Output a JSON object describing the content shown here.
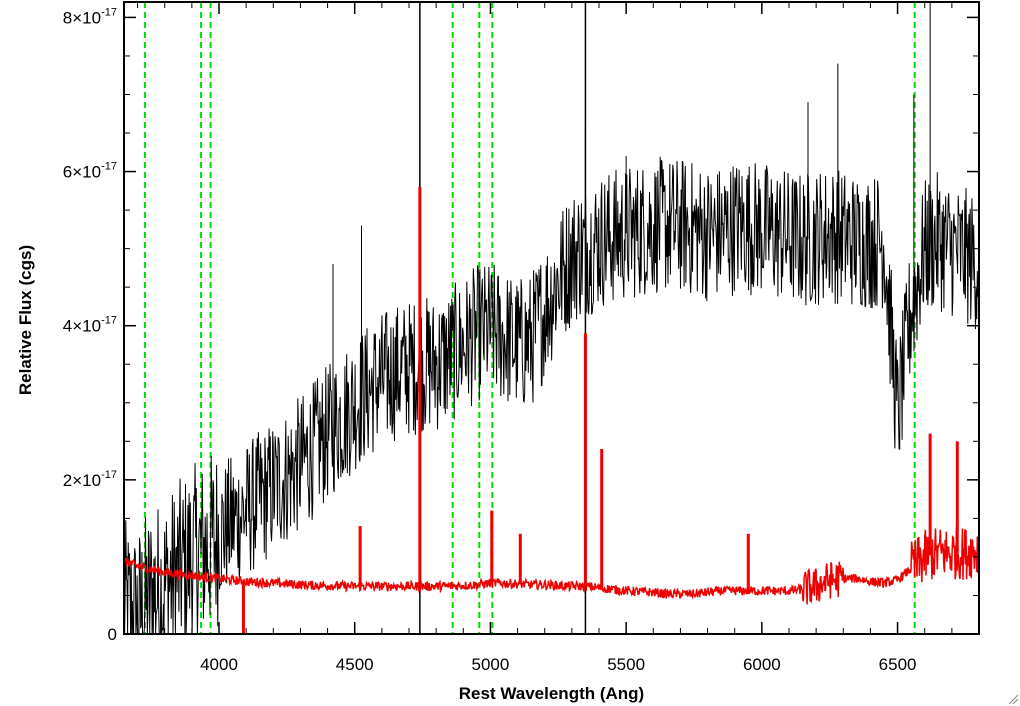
{
  "chart_data": {
    "type": "line",
    "title": "",
    "xlabel": "Rest Wavelength (Ang)",
    "ylabel": "Relative Flux (cgs)",
    "xlim": [
      3650,
      6800
    ],
    "ylim": [
      0,
      8.2e-17
    ],
    "x_ticks": [
      {
        "value": 4000,
        "label": "4000"
      },
      {
        "value": 4500,
        "label": "4500"
      },
      {
        "value": 5000,
        "label": "5000"
      },
      {
        "value": 5500,
        "label": "5500"
      },
      {
        "value": 6000,
        "label": "6000"
      },
      {
        "value": 6500,
        "label": "6500"
      }
    ],
    "y_ticks": [
      {
        "value": 0,
        "mantissa": "0",
        "exponent": ""
      },
      {
        "value": 2e-17,
        "mantissa": "2×10",
        "exponent": "-17"
      },
      {
        "value": 4e-17,
        "mantissa": "4×10",
        "exponent": "-17"
      },
      {
        "value": 6e-17,
        "mantissa": "6×10",
        "exponent": "-17"
      },
      {
        "value": 8e-17,
        "mantissa": "8×10",
        "exponent": "-17"
      }
    ],
    "reference_lines": {
      "style": "dashed",
      "color": "#00dd00",
      "x": [
        3727,
        3934,
        3969,
        4861,
        4959,
        5007,
        6563
      ]
    },
    "vertical_markers": {
      "color": "#000000",
      "x": [
        4740,
        5350
      ]
    },
    "series": [
      {
        "color": "#000000",
        "x": [
          3650,
          3700,
          3750,
          3800,
          3850,
          3900,
          3950,
          4000,
          4050,
          4100,
          4150,
          4200,
          4250,
          4300,
          4350,
          4400,
          4450,
          4500,
          4550,
          4600,
          4650,
          4700,
          4750,
          4800,
          4850,
          4900,
          4950,
          5000,
          5050,
          5100,
          5150,
          5200,
          5250,
          5300,
          5350,
          5400,
          5450,
          5500,
          5550,
          5600,
          5650,
          5700,
          5750,
          5800,
          5850,
          5900,
          5950,
          6000,
          6050,
          6100,
          6150,
          6200,
          6250,
          6300,
          6350,
          6400,
          6450,
          6500,
          6550,
          6600,
          6650,
          6700,
          6750,
          6800
        ],
        "values": [
          3e-18,
          2e-18,
          5e-18,
          6e-18,
          8e-18,
          1e-17,
          1.1e-17,
          1.3e-17,
          1.45e-17,
          1.6e-17,
          1.75e-17,
          1.9e-17,
          2.05e-17,
          2.2e-17,
          2.4e-17,
          2.6e-17,
          2.8e-17,
          3e-17,
          3.15e-17,
          3.3e-17,
          3.4e-17,
          3.45e-17,
          3.5e-17,
          3.5e-17,
          3.6e-17,
          3.75e-17,
          3.9e-17,
          3.95e-17,
          3.85e-17,
          3.75e-17,
          3.8e-17,
          4.2e-17,
          4.6e-17,
          4.9e-17,
          5e-17,
          5.1e-17,
          5.15e-17,
          5.2e-17,
          5.25e-17,
          5.3e-17,
          5.3e-17,
          5.3e-17,
          5.25e-17,
          5.2e-17,
          5.2e-17,
          5.3e-17,
          5.3e-17,
          5.25e-17,
          5.2e-17,
          5.15e-17,
          5.1e-17,
          5.15e-17,
          5.2e-17,
          5.15e-17,
          5.1e-17,
          5.1e-17,
          5.1e-17,
          2.8e-17,
          4.2e-17,
          5e-17,
          5.1e-17,
          5e-17,
          4.9e-17,
          4.8e-17
        ]
      },
      {
        "color": "#ee0000",
        "x": [
          3650,
          3700,
          3750,
          3800,
          3850,
          3900,
          3950,
          4000,
          4050,
          4100,
          4150,
          4200,
          4250,
          4300,
          4350,
          4400,
          4450,
          4500,
          4550,
          4600,
          4650,
          4700,
          4750,
          4800,
          4850,
          4900,
          4950,
          5000,
          5050,
          5100,
          5150,
          5200,
          5250,
          5300,
          5350,
          5400,
          5450,
          5500,
          5550,
          5600,
          5650,
          5700,
          5750,
          5800,
          5850,
          5900,
          5950,
          6000,
          6050,
          6100,
          6150,
          6200,
          6250,
          6300,
          6350,
          6400,
          6450,
          6500,
          6550,
          6600,
          6650,
          6700,
          6750,
          6800
        ],
        "values": [
          9.5e-18,
          8.8e-18,
          8.4e-18,
          8e-18,
          7.8e-18,
          7.6e-18,
          7.4e-18,
          7.2e-18,
          7e-18,
          6.8e-18,
          6.7e-18,
          6.6e-18,
          6.5e-18,
          6.4e-18,
          6.3e-18,
          6.3e-18,
          6.2e-18,
          6.2e-18,
          6.2e-18,
          6.2e-18,
          6.2e-18,
          6.2e-18,
          6.2e-18,
          6.2e-18,
          6.2e-18,
          6.3e-18,
          6.4e-18,
          6.6e-18,
          6.6e-18,
          6.5e-18,
          6.4e-18,
          6.4e-18,
          6.3e-18,
          6.2e-18,
          6.2e-18,
          6e-18,
          5.8e-18,
          5.6e-18,
          5.5e-18,
          5.4e-18,
          5.2e-18,
          5.2e-18,
          5.2e-18,
          5.4e-18,
          5.6e-18,
          5.6e-18,
          5.6e-18,
          5.6e-18,
          5.6e-18,
          5.6e-18,
          5.8e-18,
          6.2e-18,
          7e-18,
          7.2e-18,
          7.2e-18,
          6.8e-18,
          6.6e-18,
          7e-18,
          8.5e-18,
          1e-17,
          1.05e-17,
          1.05e-17,
          1.05e-17,
          1.1e-17
        ]
      }
    ],
    "emission_spikes": [
      {
        "x": 4740,
        "y": 5.8e-17,
        "series": 1
      },
      {
        "x": 5350,
        "y": 3.9e-17,
        "series": 1
      },
      {
        "x": 5410,
        "y": 2.4e-17,
        "series": 1
      },
      {
        "x": 4090,
        "y": 0.0,
        "series": 1
      },
      {
        "x": 4520,
        "y": 1.4e-17,
        "series": 1
      },
      {
        "x": 5005,
        "y": 1.6e-17,
        "series": 1
      },
      {
        "x": 5110,
        "y": 1.3e-17,
        "series": 1
      },
      {
        "x": 5950,
        "y": 1.3e-17,
        "series": 1
      },
      {
        "x": 6620,
        "y": 2.6e-17,
        "series": 1
      },
      {
        "x": 6720,
        "y": 2.5e-17,
        "series": 1
      },
      {
        "x": 4420,
        "y": 4.8e-17,
        "series": 0
      },
      {
        "x": 4525,
        "y": 5.3e-17,
        "series": 0
      },
      {
        "x": 5350,
        "y": 6.6e-17,
        "series": 0
      },
      {
        "x": 5500,
        "y": 6.2e-17,
        "series": 0
      },
      {
        "x": 6170,
        "y": 6.9e-17,
        "series": 0
      },
      {
        "x": 6280,
        "y": 7.4e-17,
        "series": 0
      },
      {
        "x": 6620,
        "y": 8.2e-17,
        "series": 0
      },
      {
        "x": 6560,
        "y": 7e-17,
        "series": 0
      }
    ],
    "grid": false,
    "legend": "none"
  }
}
